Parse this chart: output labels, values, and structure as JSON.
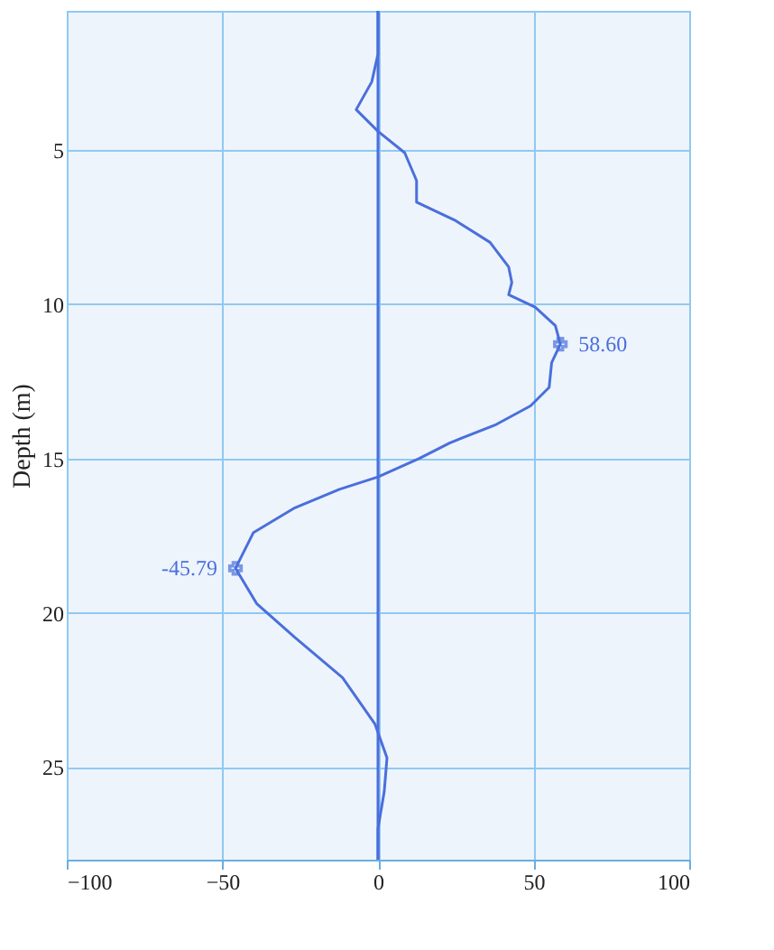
{
  "chart_data": {
    "type": "line",
    "ylabel": "Depth (m)",
    "xlim": [
      -100,
      100
    ],
    "xticks": [
      -100,
      -50,
      0,
      50,
      100
    ],
    "ylim": [
      28,
      0.5
    ],
    "yticks": [
      5,
      10,
      15,
      20,
      25
    ],
    "grid": true,
    "series": [
      {
        "color": "#4a6fdc",
        "x": [
          0,
          0,
          -2,
          -7,
          0,
          8.6,
          12.4,
          12.4,
          25,
          36,
          42,
          43,
          42,
          50.5,
          57,
          58.6,
          55.8,
          55,
          49,
          38,
          23,
          13.3,
          0,
          -12.4,
          -26.7,
          -40,
          -45.79,
          -39,
          -26.7,
          -11.4,
          -1,
          2.9,
          2,
          0,
          0
        ],
        "values": [
          0.5,
          1.9,
          2.8,
          3.7,
          4.4,
          5.1,
          6.0,
          6.7,
          7.3,
          8.0,
          8.8,
          9.3,
          9.7,
          10.1,
          10.7,
          11.3,
          11.9,
          12.7,
          13.3,
          13.9,
          14.5,
          15.0,
          15.6,
          16.0,
          16.6,
          17.4,
          18.56,
          19.7,
          20.8,
          22.1,
          23.6,
          24.7,
          25.8,
          27,
          28
        ]
      },
      {
        "type": "scatter",
        "marker": "cross",
        "color": "#4a6fdc",
        "x": [
          58.6,
          -45.79
        ],
        "values": [
          11.3,
          18.56
        ]
      }
    ],
    "annotations": [
      {
        "text": "58.60",
        "x": 58.6,
        "y": 11.3
      },
      {
        "text": "-45.79",
        "x": -45.79,
        "y": 18.56
      }
    ],
    "ref_lines": [
      {
        "axis": "x",
        "value": 0,
        "color": "#4a6fdc"
      }
    ]
  }
}
